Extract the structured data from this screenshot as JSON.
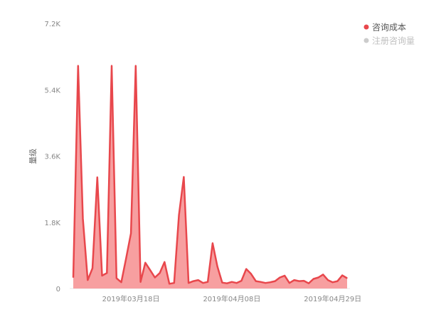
{
  "chart_data": {
    "type": "area",
    "title": "",
    "xlabel": "",
    "ylabel": "量级",
    "ylim": [
      0,
      7200
    ],
    "y_ticks": [
      0,
      1800,
      3600,
      5400,
      7200
    ],
    "y_tick_labels": [
      "0",
      "1.8K",
      "3.6K",
      "5.4K",
      "7.2K"
    ],
    "x_tick_labels": [
      {
        "date": "2019-03-18",
        "label": "2019年03月18日"
      },
      {
        "date": "2019-04-08",
        "label": "2019年04月08日"
      },
      {
        "date": "2019-04-29",
        "label": "2019年04月29日"
      }
    ],
    "x_range": [
      "2019-03-06",
      "2019-05-02"
    ],
    "grid": false,
    "legend_position": "top-right",
    "series": [
      {
        "name": "咨询成本",
        "color": "#e8474c",
        "fill": "#f79a9b",
        "active": true,
        "x": [
          "2019-03-06",
          "2019-03-07",
          "2019-03-08",
          "2019-03-09",
          "2019-03-10",
          "2019-03-11",
          "2019-03-12",
          "2019-03-13",
          "2019-03-14",
          "2019-03-15",
          "2019-03-16",
          "2019-03-17",
          "2019-03-18",
          "2019-03-19",
          "2019-03-20",
          "2019-03-21",
          "2019-03-22",
          "2019-03-23",
          "2019-03-24",
          "2019-03-25",
          "2019-03-26",
          "2019-03-27",
          "2019-03-28",
          "2019-03-29",
          "2019-03-30",
          "2019-03-31",
          "2019-04-01",
          "2019-04-02",
          "2019-04-03",
          "2019-04-04",
          "2019-04-05",
          "2019-04-06",
          "2019-04-07",
          "2019-04-08",
          "2019-04-09",
          "2019-04-10",
          "2019-04-11",
          "2019-04-12",
          "2019-04-13",
          "2019-04-14",
          "2019-04-15",
          "2019-04-16",
          "2019-04-17",
          "2019-04-18",
          "2019-04-19",
          "2019-04-20",
          "2019-04-21",
          "2019-04-22",
          "2019-04-23",
          "2019-04-24",
          "2019-04-25",
          "2019-04-26",
          "2019-04-27",
          "2019-04-28",
          "2019-04-29",
          "2019-04-30",
          "2019-05-01",
          "2019-05-02"
        ],
        "values": [
          300,
          6050,
          1900,
          230,
          550,
          3020,
          350,
          420,
          6050,
          280,
          170,
          820,
          1500,
          6050,
          180,
          700,
          500,
          300,
          420,
          720,
          130,
          150,
          2000,
          3030,
          150,
          200,
          230,
          150,
          180,
          1230,
          600,
          160,
          140,
          180,
          150,
          210,
          530,
          400,
          200,
          180,
          150,
          170,
          200,
          300,
          350,
          150,
          230,
          200,
          210,
          140,
          260,
          300,
          380,
          230,
          170,
          200,
          360,
          280
        ]
      },
      {
        "name": "注册咨询量",
        "color": "#cccccc",
        "active": false,
        "values": []
      }
    ]
  }
}
